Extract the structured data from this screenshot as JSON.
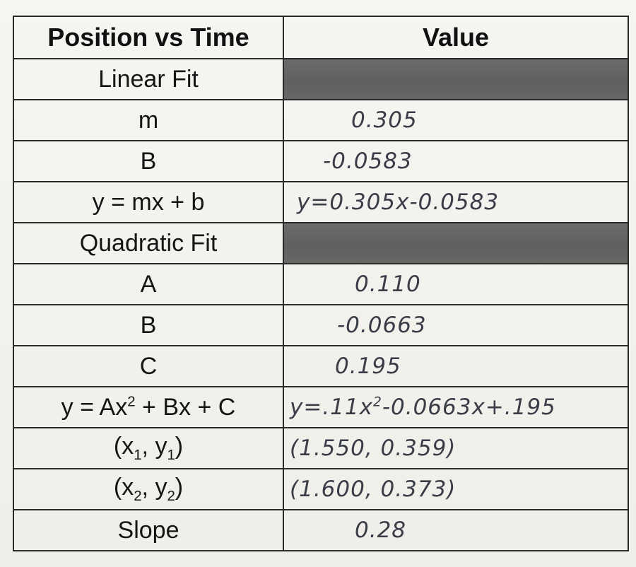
{
  "header": {
    "col1": "Position vs Time",
    "col2": "Value"
  },
  "rows": [
    {
      "label": "Linear Fit",
      "value": ""
    },
    {
      "label": "m",
      "value": "0.305"
    },
    {
      "label": "B",
      "value": "-0.0583"
    },
    {
      "label": "y = mx + b",
      "value": "y=0.305x-0.0583"
    },
    {
      "label": "Quadratic Fit",
      "value": ""
    },
    {
      "label": "A",
      "value": "0.110"
    },
    {
      "label": "B",
      "value": "-0.0663"
    },
    {
      "label": "C",
      "value": "0.195"
    },
    {
      "label_parts": {
        "pre": "y = Ax",
        "sup": "2",
        "post": " + Bx + C"
      },
      "value_parts": {
        "pre": "y=.11x",
        "sup": "2",
        "post": "-0.0663x+.195"
      }
    },
    {
      "label_parts": {
        "open": "(x",
        "sub1": "1",
        "mid": ", y",
        "sub2": "1",
        "close": ")"
      },
      "value": "(1.550, 0.359)"
    },
    {
      "label_parts": {
        "open": "(x",
        "sub1": "2",
        "mid": ", y",
        "sub2": "2",
        "close": ")"
      },
      "value": "(1.600, 0.373)"
    },
    {
      "label": "Slope",
      "value": "0.28"
    }
  ],
  "colors": {
    "border": "#2a2a2a",
    "shaded_cell": "#656563",
    "handwriting_ink": "#3a3d48"
  }
}
